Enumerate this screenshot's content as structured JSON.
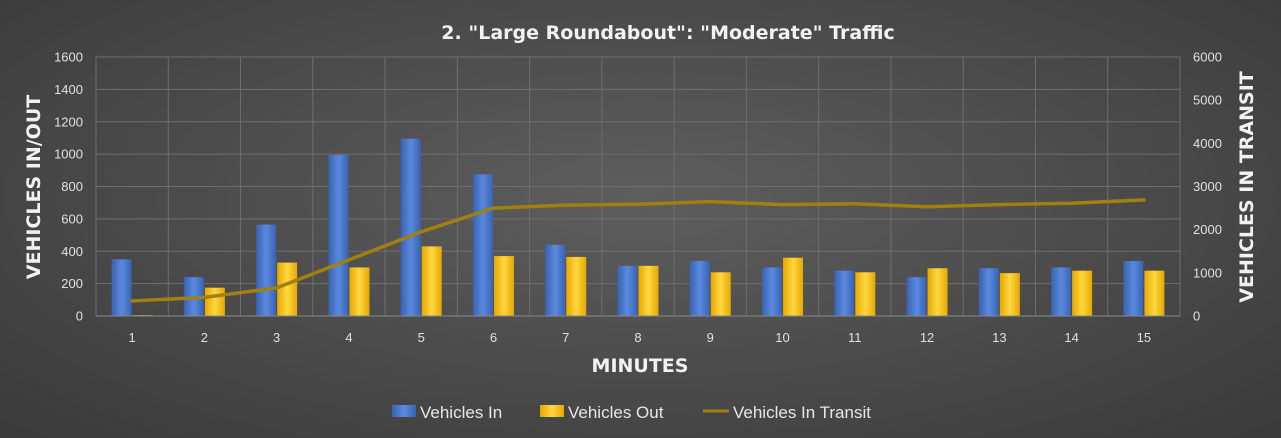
{
  "chart_data": {
    "type": "bar",
    "title": "2. \"Large Roundabout\": \"Moderate\" Traffic",
    "xlabel": "MINUTES",
    "ylabel": "VEHICLES IN/OUT",
    "y2label": "VEHICLES IN TRANSIT",
    "categories": [
      "1",
      "2",
      "3",
      "4",
      "5",
      "6",
      "7",
      "8",
      "9",
      "10",
      "11",
      "12",
      "13",
      "14",
      "15"
    ],
    "ylim": [
      0,
      1600
    ],
    "y2lim": [
      0,
      6000
    ],
    "yticks": [
      0,
      200,
      400,
      600,
      800,
      1000,
      1200,
      1400,
      1600
    ],
    "y2ticks": [
      0,
      1000,
      2000,
      3000,
      4000,
      5000,
      6000
    ],
    "grid": true,
    "legend_position": "bottom",
    "series": [
      {
        "name": "Vehicles In",
        "kind": "bar",
        "axis": "left",
        "color": "#4472c4",
        "values": [
          350,
          240,
          565,
          995,
          1095,
          875,
          440,
          310,
          340,
          300,
          280,
          240,
          295,
          300,
          340
        ]
      },
      {
        "name": "Vehicles Out",
        "kind": "bar",
        "axis": "left",
        "color": "#ffc000",
        "values": [
          5,
          175,
          330,
          300,
          430,
          370,
          365,
          310,
          270,
          360,
          270,
          295,
          265,
          280,
          280
        ]
      },
      {
        "name": "Vehicles In Transit",
        "kind": "line",
        "axis": "right",
        "color": "#a08010",
        "values": [
          350,
          430,
          650,
          1300,
          1950,
          2500,
          2570,
          2590,
          2650,
          2580,
          2600,
          2530,
          2580,
          2610,
          2690
        ]
      }
    ]
  }
}
